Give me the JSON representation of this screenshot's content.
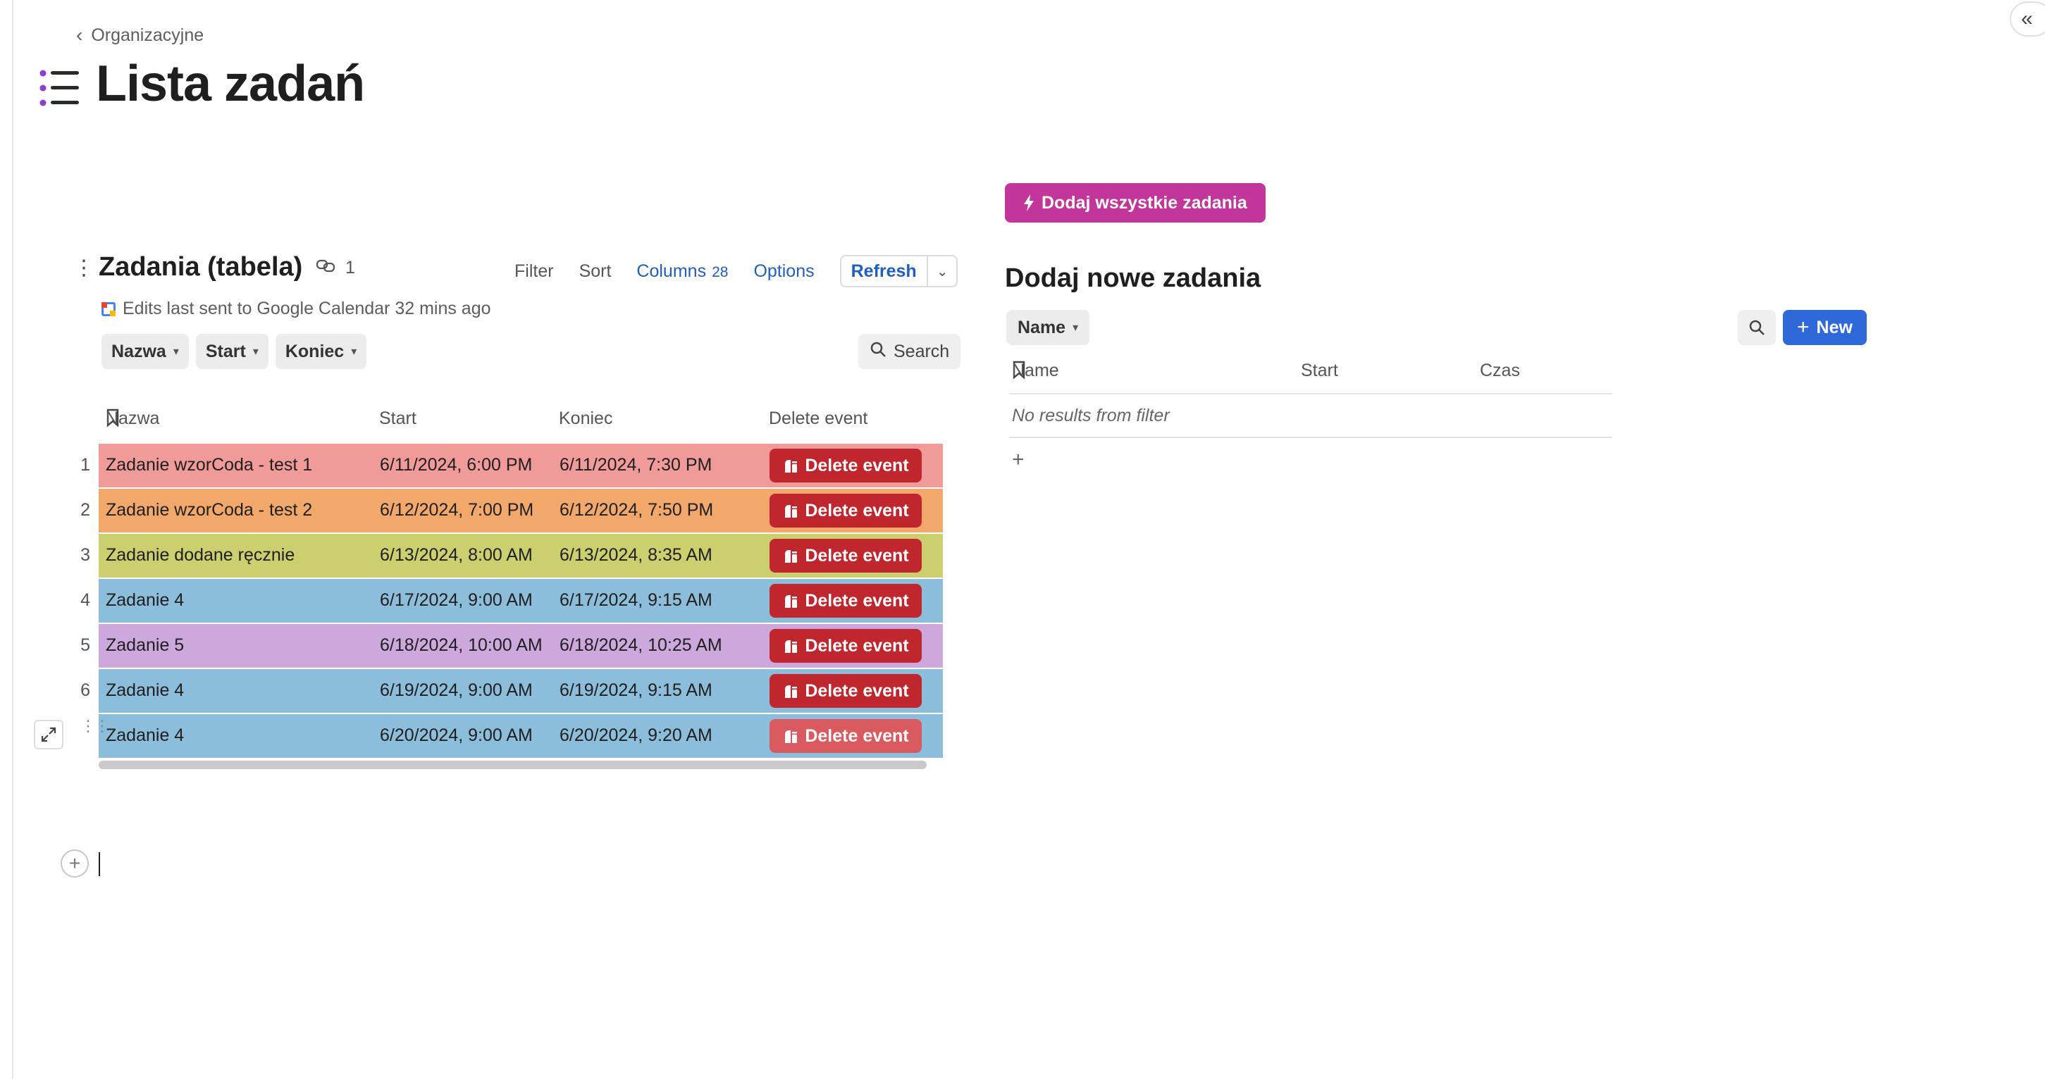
{
  "breadcrumb": {
    "label": "Organizacyjne"
  },
  "page": {
    "title": "Lista zadań"
  },
  "table": {
    "title": "Zadania (tabela)",
    "link_count": "1",
    "toolbar": {
      "filter": "Filter",
      "sort": "Sort",
      "columns": "Columns",
      "columns_count": "28",
      "options": "Options",
      "refresh": "Refresh"
    },
    "sync_note": "Edits last sent to Google Calendar 32 mins ago",
    "filter_chips": [
      "Nazwa",
      "Start",
      "Koniec"
    ],
    "search_label": "Search",
    "columns": [
      "Nazwa",
      "Start",
      "Koniec",
      "Delete event"
    ],
    "row_colors": {
      "red": "#f09a9a",
      "orange": "#f2a86a",
      "olive": "#cbcf6e",
      "blue": "#8cbddb",
      "purple": "#cda8dc"
    },
    "rows": [
      {
        "num": "1",
        "name": "Zadanie wzorCoda - test 1",
        "start": "6/11/2024, 6:00 PM",
        "end": "6/11/2024, 7:30 PM",
        "action": "Delete event",
        "color": "#f09a9a"
      },
      {
        "num": "2",
        "name": "Zadanie wzorCoda - test 2",
        "start": "6/12/2024, 7:00 PM",
        "end": "6/12/2024, 7:50 PM",
        "action": "Delete event",
        "color": "#f2a86a"
      },
      {
        "num": "3",
        "name": "Zadanie dodane ręcznie",
        "start": "6/13/2024, 8:00 AM",
        "end": "6/13/2024, 8:35 AM",
        "action": "Delete event",
        "color": "#cbcf6e"
      },
      {
        "num": "4",
        "name": "Zadanie 4",
        "start": "6/17/2024, 9:00 AM",
        "end": "6/17/2024, 9:15 AM",
        "action": "Delete event",
        "color": "#8cbddb"
      },
      {
        "num": "5",
        "name": "Zadanie 5",
        "start": "6/18/2024, 10:00 AM",
        "end": "6/18/2024, 10:25 AM",
        "action": "Delete event",
        "color": "#cda8dc"
      },
      {
        "num": "6",
        "name": "Zadanie 4",
        "start": "6/19/2024, 9:00 AM",
        "end": "6/19/2024, 9:15 AM",
        "action": "Delete event",
        "color": "#8cbddb"
      },
      {
        "num": "",
        "name": "Zadanie 4",
        "start": "6/20/2024, 9:00 AM",
        "end": "6/20/2024, 9:20 AM",
        "action": "Delete event",
        "color": "#8cbddb"
      }
    ]
  },
  "right_panel": {
    "action_button": "Dodaj wszystkie zadania",
    "title": "Dodaj nowe zadania",
    "name_chip": "Name",
    "new_button": "New",
    "columns": [
      "Name",
      "Start",
      "Czas"
    ],
    "empty_text": "No results from filter"
  },
  "colors": {
    "accent_blue": "#1f5fbf",
    "delete_red": "#c0262d",
    "action_magenta": "#c2369b",
    "new_blue": "#2e68d9"
  },
  "icons": [
    "chevron-left-icon",
    "list-icon",
    "collapse-double-chevron-icon",
    "kebab-icon",
    "link-icon",
    "google-calendar-icon",
    "chevron-down-icon",
    "search-icon",
    "bookmark-icon",
    "delete-event-icon",
    "expand-icon",
    "drag-handle-icon",
    "plus-icon",
    "lightning-icon"
  ]
}
